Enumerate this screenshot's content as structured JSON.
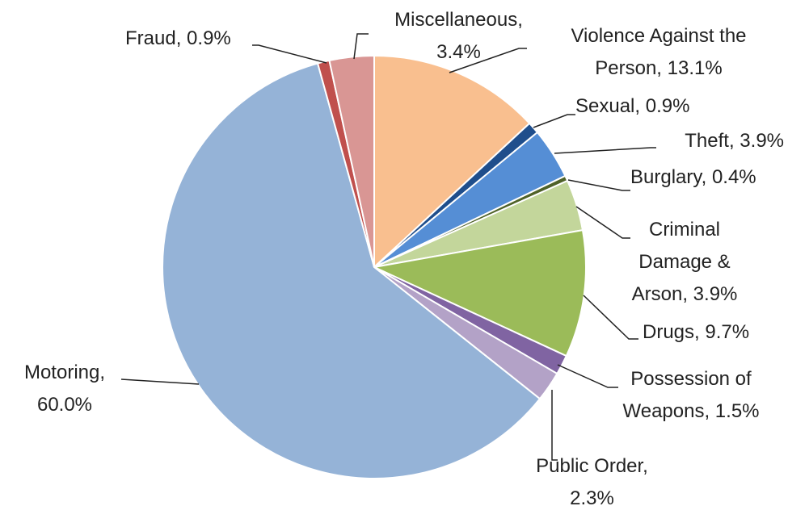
{
  "chart_data": {
    "type": "pie",
    "categories": [
      "Violence Against the Person,",
      "Sexual,",
      "Theft,",
      "Burglary,",
      "Criminal Damage & Arson,",
      "Drugs,",
      "Possession of Weapons,",
      "Public Order,",
      "Motoring,",
      "Fraud,",
      "Miscellaneous,"
    ],
    "values": [
      13.1,
      0.9,
      3.9,
      0.4,
      3.9,
      9.7,
      1.5,
      2.3,
      60.0,
      0.9,
      3.4
    ],
    "value_labels": [
      "13.1%",
      "0.9%",
      "3.9%",
      "0.4%",
      "3.9%",
      "9.7%",
      "1.5%",
      "2.3%",
      "60.0%",
      "0.9%",
      "3.4%"
    ],
    "colors": [
      "#f9bf8f",
      "#1f4e8c",
      "#558ed5",
      "#4f6228",
      "#c3d69b",
      "#9bbb59",
      "#8064a2",
      "#b3a2c7",
      "#95b3d7",
      "#c0504d",
      "#d99694"
    ]
  }
}
